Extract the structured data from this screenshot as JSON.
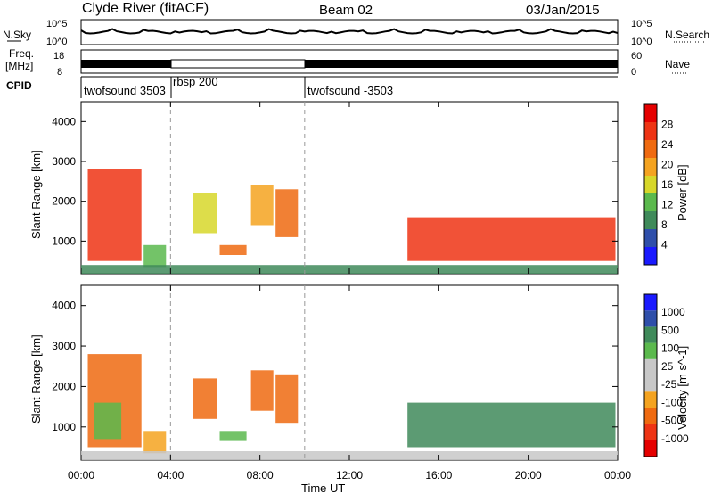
{
  "header": {
    "station": "Clyde River (fitACF)",
    "beam": "Beam 02",
    "date": "03/Jan/2015"
  },
  "top_panels": {
    "nsky": {
      "label": "N.Sky",
      "left_ticks": [
        "10^5",
        "10^0"
      ],
      "right_ticks": [
        "10^5",
        "10^0"
      ],
      "right_label": "N.Search"
    },
    "freq": {
      "label_line1": "Freq.",
      "label_line2": "[MHz]",
      "left_ticks": [
        "18",
        "8"
      ],
      "right_ticks": [
        "60",
        "0"
      ],
      "right_label": "Nave"
    },
    "cpid": {
      "label": "CPID",
      "modes": [
        {
          "name": "twofsound 3503",
          "start_hour": 0,
          "end_hour": 4
        },
        {
          "name": "rbsp 200",
          "start_hour": 4,
          "end_hour": 10
        },
        {
          "name": "twofsound -3503",
          "start_hour": 10,
          "end_hour": 24
        }
      ]
    }
  },
  "x_axis": {
    "label": "Time UT",
    "ticks": [
      "00:00",
      "04:00",
      "08:00",
      "12:00",
      "16:00",
      "20:00",
      "00:00"
    ],
    "range_hours": [
      0,
      24
    ]
  },
  "colors": {
    "power_scale": [
      "#1a1aff",
      "#2f4faa",
      "#3f8a5a",
      "#5bb94d",
      "#d7d72a",
      "#f4a320",
      "#ef6a10",
      "#ee3414",
      "#e50000"
    ],
    "velocity_scale": [
      "#e50000",
      "#ee3414",
      "#ef6a10",
      "#f4a320",
      "#c8c8c8",
      "#c8c8c8",
      "#5bb94d",
      "#3f8a5a",
      "#2f4faa",
      "#1a1aff"
    ]
  },
  "chart_data": [
    {
      "type": "heatmap",
      "title": "",
      "xlabel": "",
      "ylabel": "Slant Range [km]",
      "xlim": [
        0,
        24
      ],
      "ylim": [
        180,
        4500
      ],
      "yticks": [
        "1000",
        "2000",
        "3000",
        "4000"
      ],
      "colorbar": {
        "label": "Power [dB]",
        "ticks": [
          "28",
          "24",
          "20",
          "16",
          "12",
          "8",
          "4"
        ],
        "range": [
          0,
          30
        ]
      },
      "echo_regions": [
        {
          "x": [
            0.3,
            2.7
          ],
          "y": [
            500,
            2800
          ],
          "value": 26
        },
        {
          "x": [
            2.8,
            3.8
          ],
          "y": [
            350,
            900
          ],
          "value": 10
        },
        {
          "x": [
            5.0,
            6.1
          ],
          "y": [
            1200,
            2200
          ],
          "value": 16
        },
        {
          "x": [
            6.2,
            7.4
          ],
          "y": [
            650,
            900
          ],
          "value": 22
        },
        {
          "x": [
            7.6,
            8.6
          ],
          "y": [
            1400,
            2400
          ],
          "value": 18
        },
        {
          "x": [
            8.7,
            9.7
          ],
          "y": [
            1100,
            2300
          ],
          "value": 20
        },
        {
          "x": [
            14.6,
            23.9
          ],
          "y": [
            500,
            1600
          ],
          "value": 24
        },
        {
          "x": [
            0.0,
            24.0
          ],
          "y": [
            180,
            400
          ],
          "value": 8
        }
      ]
    },
    {
      "type": "heatmap",
      "title": "",
      "xlabel": "Time UT",
      "ylabel": "Slant Range [km]",
      "xlim": [
        0,
        24
      ],
      "ylim": [
        180,
        4500
      ],
      "yticks": [
        "1000",
        "2000",
        "3000",
        "4000"
      ],
      "colorbar": {
        "label": "Velocity [m s^-1]",
        "ticks": [
          "1000",
          "500",
          "100",
          "25",
          "-25",
          "-100",
          "-500",
          "-1000"
        ],
        "range": [
          -1000,
          1000
        ]
      },
      "echo_regions": [
        {
          "x": [
            0.3,
            2.7
          ],
          "y": [
            500,
            2800
          ],
          "value": -100
        },
        {
          "x": [
            0.6,
            1.8
          ],
          "y": [
            700,
            1600
          ],
          "value": 100
        },
        {
          "x": [
            2.8,
            3.8
          ],
          "y": [
            350,
            900
          ],
          "value": -25
        },
        {
          "x": [
            5.0,
            6.1
          ],
          "y": [
            1200,
            2200
          ],
          "value": -100
        },
        {
          "x": [
            6.2,
            7.4
          ],
          "y": [
            650,
            900
          ],
          "value": 100
        },
        {
          "x": [
            7.6,
            8.6
          ],
          "y": [
            1400,
            2400
          ],
          "value": -100
        },
        {
          "x": [
            8.7,
            9.7
          ],
          "y": [
            1100,
            2300
          ],
          "value": -100
        },
        {
          "x": [
            14.6,
            23.9
          ],
          "y": [
            500,
            1600
          ],
          "value": 500
        },
        {
          "x": [
            0.0,
            24.0
          ],
          "y": [
            180,
            400
          ],
          "value": 25
        }
      ]
    }
  ]
}
